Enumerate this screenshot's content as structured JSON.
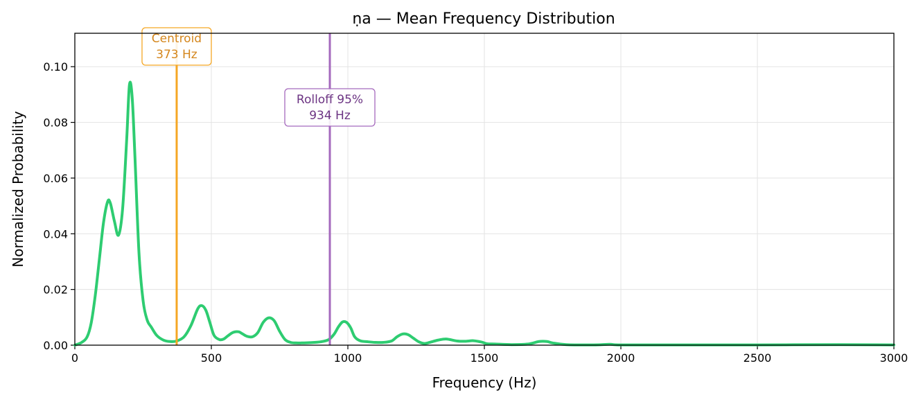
{
  "chart_data": {
    "type": "line",
    "title": "ṇa  —  Mean Frequency Distribution",
    "xlabel": "Frequency (Hz)",
    "ylabel": "Normalized Probability",
    "xlim": [
      0,
      3000
    ],
    "ylim": [
      0,
      0.112
    ],
    "xticks": [
      0,
      500,
      1000,
      1500,
      2000,
      2500,
      3000
    ],
    "xtick_labels": [
      "0",
      "500",
      "1000",
      "1500",
      "2000",
      "2500",
      "3000"
    ],
    "yticks": [
      0,
      0.02,
      0.04,
      0.06,
      0.08,
      0.1
    ],
    "ytick_labels": [
      "0.00",
      "0.02",
      "0.04",
      "0.06",
      "0.08",
      "0.10"
    ],
    "grid": true,
    "series": [
      {
        "color": "#2ecc71",
        "x": [
          0,
          25,
          45,
          60,
          75,
          90,
          105,
          120,
          130,
          145,
          160,
          175,
          190,
          200,
          210,
          220,
          235,
          250,
          265,
          280,
          300,
          325,
          350,
          373,
          400,
          425,
          450,
          465,
          480,
          495,
          510,
          530,
          545,
          560,
          580,
          600,
          615,
          630,
          650,
          670,
          690,
          710,
          730,
          750,
          770,
          790,
          810,
          830,
          860,
          900,
          930,
          950,
          965,
          980,
          995,
          1010,
          1025,
          1045,
          1075,
          1100,
          1130,
          1160,
          1180,
          1200,
          1220,
          1240,
          1260,
          1280,
          1300,
          1330,
          1360,
          1400,
          1430,
          1460,
          1490,
          1510,
          1540,
          1600,
          1660,
          1700,
          1730,
          1750,
          1800,
          1900,
          1960,
          2000,
          2200,
          2500,
          2800,
          3000
        ],
        "y": [
          0,
          0.001,
          0.003,
          0.008,
          0.018,
          0.031,
          0.044,
          0.0515,
          0.051,
          0.0445,
          0.0395,
          0.049,
          0.074,
          0.0935,
          0.089,
          0.068,
          0.033,
          0.016,
          0.009,
          0.0065,
          0.0035,
          0.0018,
          0.0013,
          0.0015,
          0.003,
          0.007,
          0.013,
          0.0142,
          0.0125,
          0.008,
          0.0035,
          0.002,
          0.0022,
          0.0033,
          0.0046,
          0.0048,
          0.004,
          0.0032,
          0.003,
          0.0045,
          0.0082,
          0.0098,
          0.0088,
          0.005,
          0.002,
          0.001,
          0.0008,
          0.0008,
          0.0009,
          0.0012,
          0.002,
          0.004,
          0.0065,
          0.0083,
          0.0082,
          0.0063,
          0.003,
          0.0016,
          0.0012,
          0.001,
          0.001,
          0.0015,
          0.003,
          0.004,
          0.0038,
          0.0025,
          0.0012,
          0.0006,
          0.001,
          0.0018,
          0.0022,
          0.0015,
          0.0014,
          0.0016,
          0.0011,
          0.0005,
          0.0004,
          0.0002,
          0.0004,
          0.0013,
          0.0013,
          0.0008,
          0.0002,
          0.0001,
          0.0003,
          0.0001,
          0.0001,
          0.0001,
          0.0002,
          0.0001
        ]
      }
    ],
    "annotations": [
      {
        "label": "Centroid",
        "value_text": "373 Hz",
        "x": 373,
        "color": "#f5a623",
        "text_color": "#d4861c"
      },
      {
        "label": "Rolloff 95%",
        "value_text": "934 Hz",
        "x": 934,
        "color": "#a569bd",
        "text_color": "#6c3483"
      }
    ]
  }
}
